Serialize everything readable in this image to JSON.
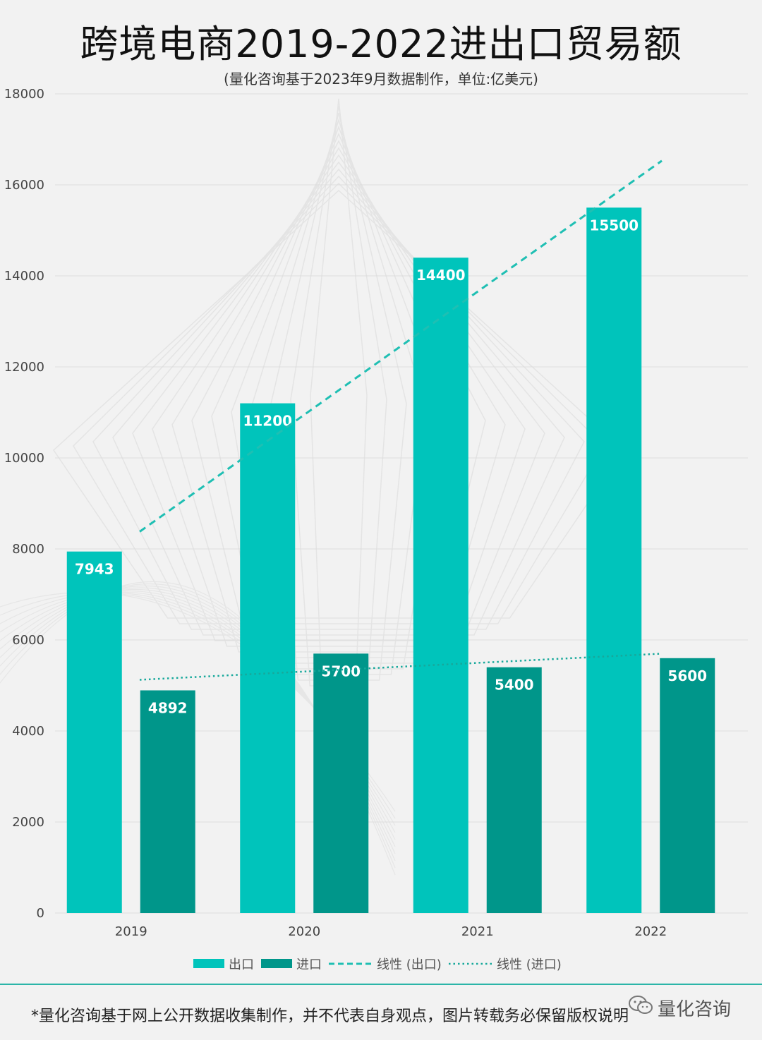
{
  "title": "跨境电商2019-2022进出口贸易额",
  "subtitle": "(量化咨询基于2023年9月数据制作，单位:亿美元)",
  "footer_note": "*量化咨询基于网上公开数据收集制作，并不代表自身观点，图片转载务必保留版权说明",
  "watermark": "量化咨询",
  "colors": {
    "export": "#00c4bb",
    "import": "#00968a",
    "trend_export": "#1fbfb3",
    "trend_import": "#17a89b",
    "grid": "#dddddd"
  },
  "chart_data": {
    "type": "bar",
    "title": "跨境电商2019-2022进出口贸易额",
    "subtitle": "(量化咨询基于2023年9月数据制作，单位:亿美元)",
    "categories": [
      "2019",
      "2020",
      "2021",
      "2022"
    ],
    "series": [
      {
        "name": "出口",
        "values": [
          7943,
          11200,
          14400,
          15500
        ]
      },
      {
        "name": "进口",
        "values": [
          4892,
          5700,
          5400,
          5600
        ]
      }
    ],
    "trendlines": [
      {
        "name": "线性 (出口)",
        "of": "出口",
        "style": "dashed"
      },
      {
        "name": "线性 (进口)",
        "of": "进口",
        "style": "dotted"
      }
    ],
    "ylim": [
      0,
      18000
    ],
    "yticks": [
      0,
      2000,
      4000,
      6000,
      8000,
      10000,
      12000,
      14000,
      16000,
      18000
    ],
    "grid": true,
    "legend": "bottom"
  }
}
